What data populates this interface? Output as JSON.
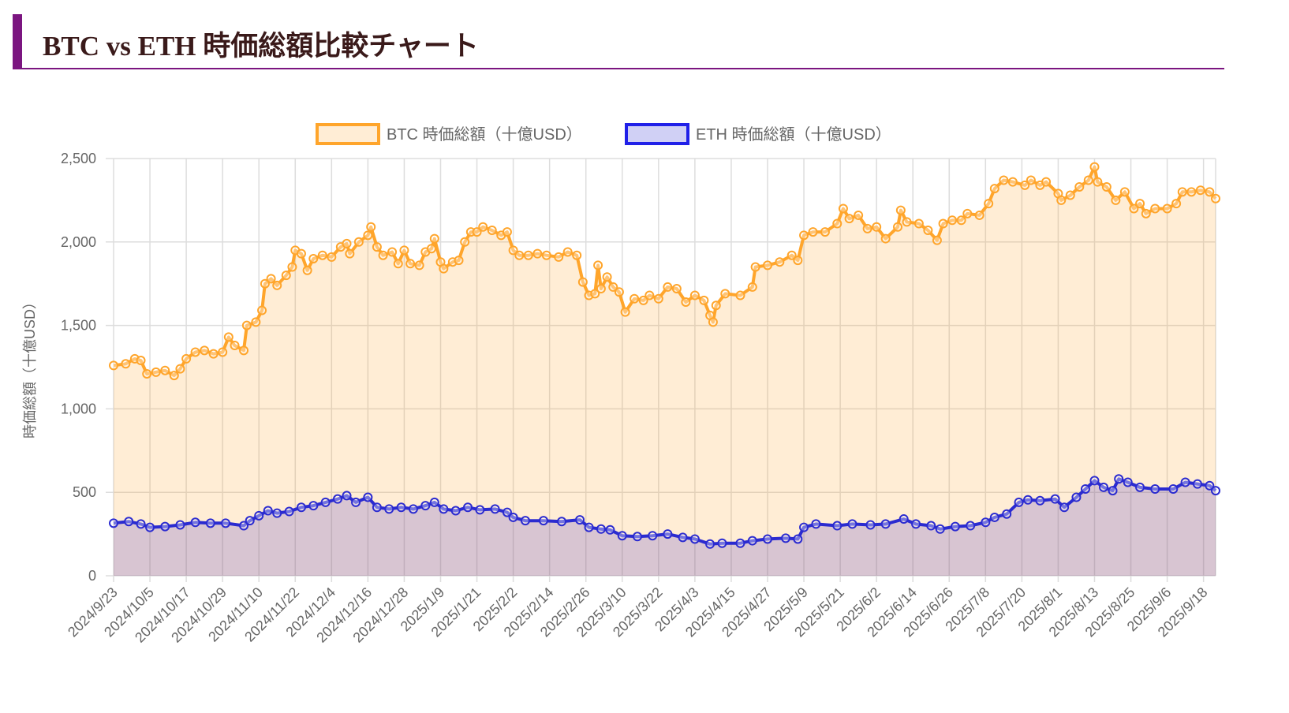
{
  "page_title": "BTC vs ETH 時価総額比較チャート",
  "chart_data": {
    "type": "area",
    "title": "",
    "xlabel": "",
    "ylabel": "時価総額（十億USD）",
    "ylim": [
      0,
      2500
    ],
    "yticks": [
      "0",
      "500",
      "1,000",
      "1,500",
      "2,000",
      "2,500"
    ],
    "ytick_values": [
      0,
      500,
      1000,
      1500,
      2000,
      2500
    ],
    "xticks": [
      "2024/9/23",
      "2024/10/5",
      "2024/10/17",
      "2024/10/29",
      "2024/11/10",
      "2024/11/22",
      "2024/12/4",
      "2024/12/16",
      "2024/12/28",
      "2025/1/9",
      "2025/1/21",
      "2025/2/2",
      "2025/2/14",
      "2025/2/26",
      "2025/3/10",
      "2025/3/22",
      "2025/4/3",
      "2025/4/15",
      "2025/4/27",
      "2025/5/9",
      "2025/5/21",
      "2025/6/2",
      "2025/6/14",
      "2025/6/26",
      "2025/7/8",
      "2025/7/20",
      "2025/8/1",
      "2025/8/13",
      "2025/8/25",
      "2025/9/6",
      "2025/9/18"
    ],
    "xrange": [
      "2024/9/23",
      "2025/9/22"
    ],
    "grid": true,
    "legend_position": "top",
    "series": [
      {
        "name": "BTC 時価総額（十億USD）",
        "color": "#ffa52b",
        "fill": "rgba(255,165,43,0.2)",
        "points": [
          [
            "2024/9/23",
            1260
          ],
          [
            "2024/9/27",
            1270
          ],
          [
            "2024/9/30",
            1300
          ],
          [
            "2024/10/2",
            1290
          ],
          [
            "2024/10/4",
            1210
          ],
          [
            "2024/10/7",
            1220
          ],
          [
            "2024/10/10",
            1230
          ],
          [
            "2024/10/13",
            1200
          ],
          [
            "2024/10/15",
            1240
          ],
          [
            "2024/10/17",
            1300
          ],
          [
            "2024/10/20",
            1340
          ],
          [
            "2024/10/23",
            1350
          ],
          [
            "2024/10/26",
            1330
          ],
          [
            "2024/10/29",
            1340
          ],
          [
            "2024/10/31",
            1430
          ],
          [
            "2024/11/2",
            1380
          ],
          [
            "2024/11/5",
            1350
          ],
          [
            "2024/11/6",
            1500
          ],
          [
            "2024/11/9",
            1520
          ],
          [
            "2024/11/11",
            1590
          ],
          [
            "2024/11/12",
            1750
          ],
          [
            "2024/11/14",
            1780
          ],
          [
            "2024/11/16",
            1740
          ],
          [
            "2024/11/19",
            1800
          ],
          [
            "2024/11/21",
            1850
          ],
          [
            "2024/11/22",
            1950
          ],
          [
            "2024/11/24",
            1930
          ],
          [
            "2024/11/26",
            1830
          ],
          [
            "2024/11/28",
            1900
          ],
          [
            "2024/12/1",
            1920
          ],
          [
            "2024/12/4",
            1910
          ],
          [
            "2024/12/7",
            1970
          ],
          [
            "2024/12/9",
            1990
          ],
          [
            "2024/12/10",
            1930
          ],
          [
            "2024/12/13",
            2000
          ],
          [
            "2024/12/16",
            2040
          ],
          [
            "2024/12/17",
            2090
          ],
          [
            "2024/12/19",
            1970
          ],
          [
            "2024/12/21",
            1920
          ],
          [
            "2024/12/24",
            1940
          ],
          [
            "2024/12/26",
            1870
          ],
          [
            "2024/12/28",
            1950
          ],
          [
            "2024/12/30",
            1870
          ],
          [
            "2025/1/2",
            1860
          ],
          [
            "2025/1/4",
            1940
          ],
          [
            "2025/1/6",
            1960
          ],
          [
            "2025/1/7",
            2020
          ],
          [
            "2025/1/9",
            1880
          ],
          [
            "2025/1/10",
            1840
          ],
          [
            "2025/1/13",
            1880
          ],
          [
            "2025/1/15",
            1890
          ],
          [
            "2025/1/17",
            2000
          ],
          [
            "2025/1/19",
            2060
          ],
          [
            "2025/1/21",
            2060
          ],
          [
            "2025/1/23",
            2090
          ],
          [
            "2025/1/26",
            2070
          ],
          [
            "2025/1/29",
            2040
          ],
          [
            "2025/1/31",
            2060
          ],
          [
            "2025/2/2",
            1950
          ],
          [
            "2025/2/4",
            1920
          ],
          [
            "2025/2/7",
            1920
          ],
          [
            "2025/2/10",
            1930
          ],
          [
            "2025/2/13",
            1920
          ],
          [
            "2025/2/17",
            1910
          ],
          [
            "2025/2/20",
            1940
          ],
          [
            "2025/2/23",
            1920
          ],
          [
            "2025/2/25",
            1760
          ],
          [
            "2025/2/27",
            1680
          ],
          [
            "2025/3/1",
            1690
          ],
          [
            "2025/3/2",
            1860
          ],
          [
            "2025/3/3",
            1720
          ],
          [
            "2025/3/5",
            1790
          ],
          [
            "2025/3/7",
            1730
          ],
          [
            "2025/3/9",
            1700
          ],
          [
            "2025/3/11",
            1580
          ],
          [
            "2025/3/14",
            1660
          ],
          [
            "2025/3/17",
            1650
          ],
          [
            "2025/3/19",
            1680
          ],
          [
            "2025/3/22",
            1660
          ],
          [
            "2025/3/25",
            1730
          ],
          [
            "2025/3/28",
            1720
          ],
          [
            "2025/3/31",
            1640
          ],
          [
            "2025/4/3",
            1680
          ],
          [
            "2025/4/6",
            1650
          ],
          [
            "2025/4/8",
            1560
          ],
          [
            "2025/4/9",
            1520
          ],
          [
            "2025/4/10",
            1620
          ],
          [
            "2025/4/13",
            1690
          ],
          [
            "2025/4/18",
            1680
          ],
          [
            "2025/4/22",
            1730
          ],
          [
            "2025/4/23",
            1850
          ],
          [
            "2025/4/27",
            1860
          ],
          [
            "2025/5/1",
            1880
          ],
          [
            "2025/5/5",
            1920
          ],
          [
            "2025/5/7",
            1890
          ],
          [
            "2025/5/9",
            2040
          ],
          [
            "2025/5/12",
            2060
          ],
          [
            "2025/5/16",
            2060
          ],
          [
            "2025/5/20",
            2110
          ],
          [
            "2025/5/22",
            2200
          ],
          [
            "2025/5/24",
            2140
          ],
          [
            "2025/5/27",
            2160
          ],
          [
            "2025/5/30",
            2080
          ],
          [
            "2025/6/2",
            2090
          ],
          [
            "2025/6/5",
            2020
          ],
          [
            "2025/6/9",
            2090
          ],
          [
            "2025/6/10",
            2190
          ],
          [
            "2025/6/12",
            2120
          ],
          [
            "2025/6/16",
            2110
          ],
          [
            "2025/6/19",
            2070
          ],
          [
            "2025/6/22",
            2010
          ],
          [
            "2025/6/24",
            2110
          ],
          [
            "2025/6/27",
            2130
          ],
          [
            "2025/6/30",
            2130
          ],
          [
            "2025/7/2",
            2170
          ],
          [
            "2025/7/6",
            2160
          ],
          [
            "2025/7/9",
            2230
          ],
          [
            "2025/7/11",
            2320
          ],
          [
            "2025/7/14",
            2370
          ],
          [
            "2025/7/17",
            2360
          ],
          [
            "2025/7/21",
            2340
          ],
          [
            "2025/7/23",
            2370
          ],
          [
            "2025/7/26",
            2340
          ],
          [
            "2025/7/28",
            2360
          ],
          [
            "2025/8/1",
            2290
          ],
          [
            "2025/8/2",
            2250
          ],
          [
            "2025/8/5",
            2280
          ],
          [
            "2025/8/8",
            2330
          ],
          [
            "2025/8/11",
            2370
          ],
          [
            "2025/8/13",
            2450
          ],
          [
            "2025/8/14",
            2360
          ],
          [
            "2025/8/17",
            2330
          ],
          [
            "2025/8/20",
            2250
          ],
          [
            "2025/8/23",
            2300
          ],
          [
            "2025/8/26",
            2200
          ],
          [
            "2025/8/28",
            2230
          ],
          [
            "2025/8/30",
            2170
          ],
          [
            "2025/9/2",
            2200
          ],
          [
            "2025/9/6",
            2200
          ],
          [
            "2025/9/9",
            2230
          ],
          [
            "2025/9/11",
            2300
          ],
          [
            "2025/9/14",
            2300
          ],
          [
            "2025/9/17",
            2310
          ],
          [
            "2025/9/20",
            2300
          ],
          [
            "2025/9/22",
            2260
          ]
        ]
      },
      {
        "name": "ETH 時価総額（十億USD）",
        "color": "#2b2bd0",
        "fill": "rgba(60,40,200,0.2)",
        "points": [
          [
            "2024/9/23",
            315
          ],
          [
            "2024/9/28",
            325
          ],
          [
            "2024/10/2",
            310
          ],
          [
            "2024/10/5",
            290
          ],
          [
            "2024/10/10",
            295
          ],
          [
            "2024/10/15",
            305
          ],
          [
            "2024/10/20",
            320
          ],
          [
            "2024/10/25",
            315
          ],
          [
            "2024/10/30",
            315
          ],
          [
            "2024/11/5",
            300
          ],
          [
            "2024/11/7",
            330
          ],
          [
            "2024/11/10",
            360
          ],
          [
            "2024/11/13",
            390
          ],
          [
            "2024/11/16",
            375
          ],
          [
            "2024/11/20",
            385
          ],
          [
            "2024/11/24",
            410
          ],
          [
            "2024/11/28",
            420
          ],
          [
            "2024/12/2",
            440
          ],
          [
            "2024/12/6",
            460
          ],
          [
            "2024/12/9",
            480
          ],
          [
            "2024/12/12",
            440
          ],
          [
            "2024/12/16",
            470
          ],
          [
            "2024/12/19",
            410
          ],
          [
            "2024/12/23",
            400
          ],
          [
            "2024/12/27",
            410
          ],
          [
            "2024/12/31",
            400
          ],
          [
            "2025/1/4",
            420
          ],
          [
            "2025/1/7",
            440
          ],
          [
            "2025/1/10",
            400
          ],
          [
            "2025/1/14",
            390
          ],
          [
            "2025/1/18",
            410
          ],
          [
            "2025/1/22",
            395
          ],
          [
            "2025/1/27",
            400
          ],
          [
            "2025/1/31",
            380
          ],
          [
            "2025/2/2",
            350
          ],
          [
            "2025/2/6",
            330
          ],
          [
            "2025/2/12",
            330
          ],
          [
            "2025/2/18",
            325
          ],
          [
            "2025/2/24",
            335
          ],
          [
            "2025/2/27",
            290
          ],
          [
            "2025/3/3",
            280
          ],
          [
            "2025/3/6",
            275
          ],
          [
            "2025/3/10",
            240
          ],
          [
            "2025/3/15",
            235
          ],
          [
            "2025/3/20",
            240
          ],
          [
            "2025/3/25",
            250
          ],
          [
            "2025/3/30",
            230
          ],
          [
            "2025/4/3",
            220
          ],
          [
            "2025/4/8",
            190
          ],
          [
            "2025/4/12",
            195
          ],
          [
            "2025/4/18",
            195
          ],
          [
            "2025/4/22",
            210
          ],
          [
            "2025/4/27",
            220
          ],
          [
            "2025/5/3",
            225
          ],
          [
            "2025/5/7",
            220
          ],
          [
            "2025/5/9",
            290
          ],
          [
            "2025/5/13",
            310
          ],
          [
            "2025/5/20",
            300
          ],
          [
            "2025/5/25",
            310
          ],
          [
            "2025/5/31",
            305
          ],
          [
            "2025/6/5",
            310
          ],
          [
            "2025/6/11",
            340
          ],
          [
            "2025/6/15",
            310
          ],
          [
            "2025/6/20",
            300
          ],
          [
            "2025/6/23",
            280
          ],
          [
            "2025/6/28",
            295
          ],
          [
            "2025/7/3",
            300
          ],
          [
            "2025/7/8",
            320
          ],
          [
            "2025/7/11",
            350
          ],
          [
            "2025/7/15",
            370
          ],
          [
            "2025/7/19",
            440
          ],
          [
            "2025/7/22",
            455
          ],
          [
            "2025/7/26",
            450
          ],
          [
            "2025/7/31",
            460
          ],
          [
            "2025/8/3",
            410
          ],
          [
            "2025/8/7",
            470
          ],
          [
            "2025/8/10",
            520
          ],
          [
            "2025/8/13",
            570
          ],
          [
            "2025/8/16",
            530
          ],
          [
            "2025/8/19",
            510
          ],
          [
            "2025/8/21",
            580
          ],
          [
            "2025/8/24",
            560
          ],
          [
            "2025/8/28",
            530
          ],
          [
            "2025/9/2",
            520
          ],
          [
            "2025/9/8",
            520
          ],
          [
            "2025/9/12",
            560
          ],
          [
            "2025/9/16",
            550
          ],
          [
            "2025/9/20",
            540
          ],
          [
            "2025/9/22",
            510
          ]
        ]
      }
    ]
  }
}
